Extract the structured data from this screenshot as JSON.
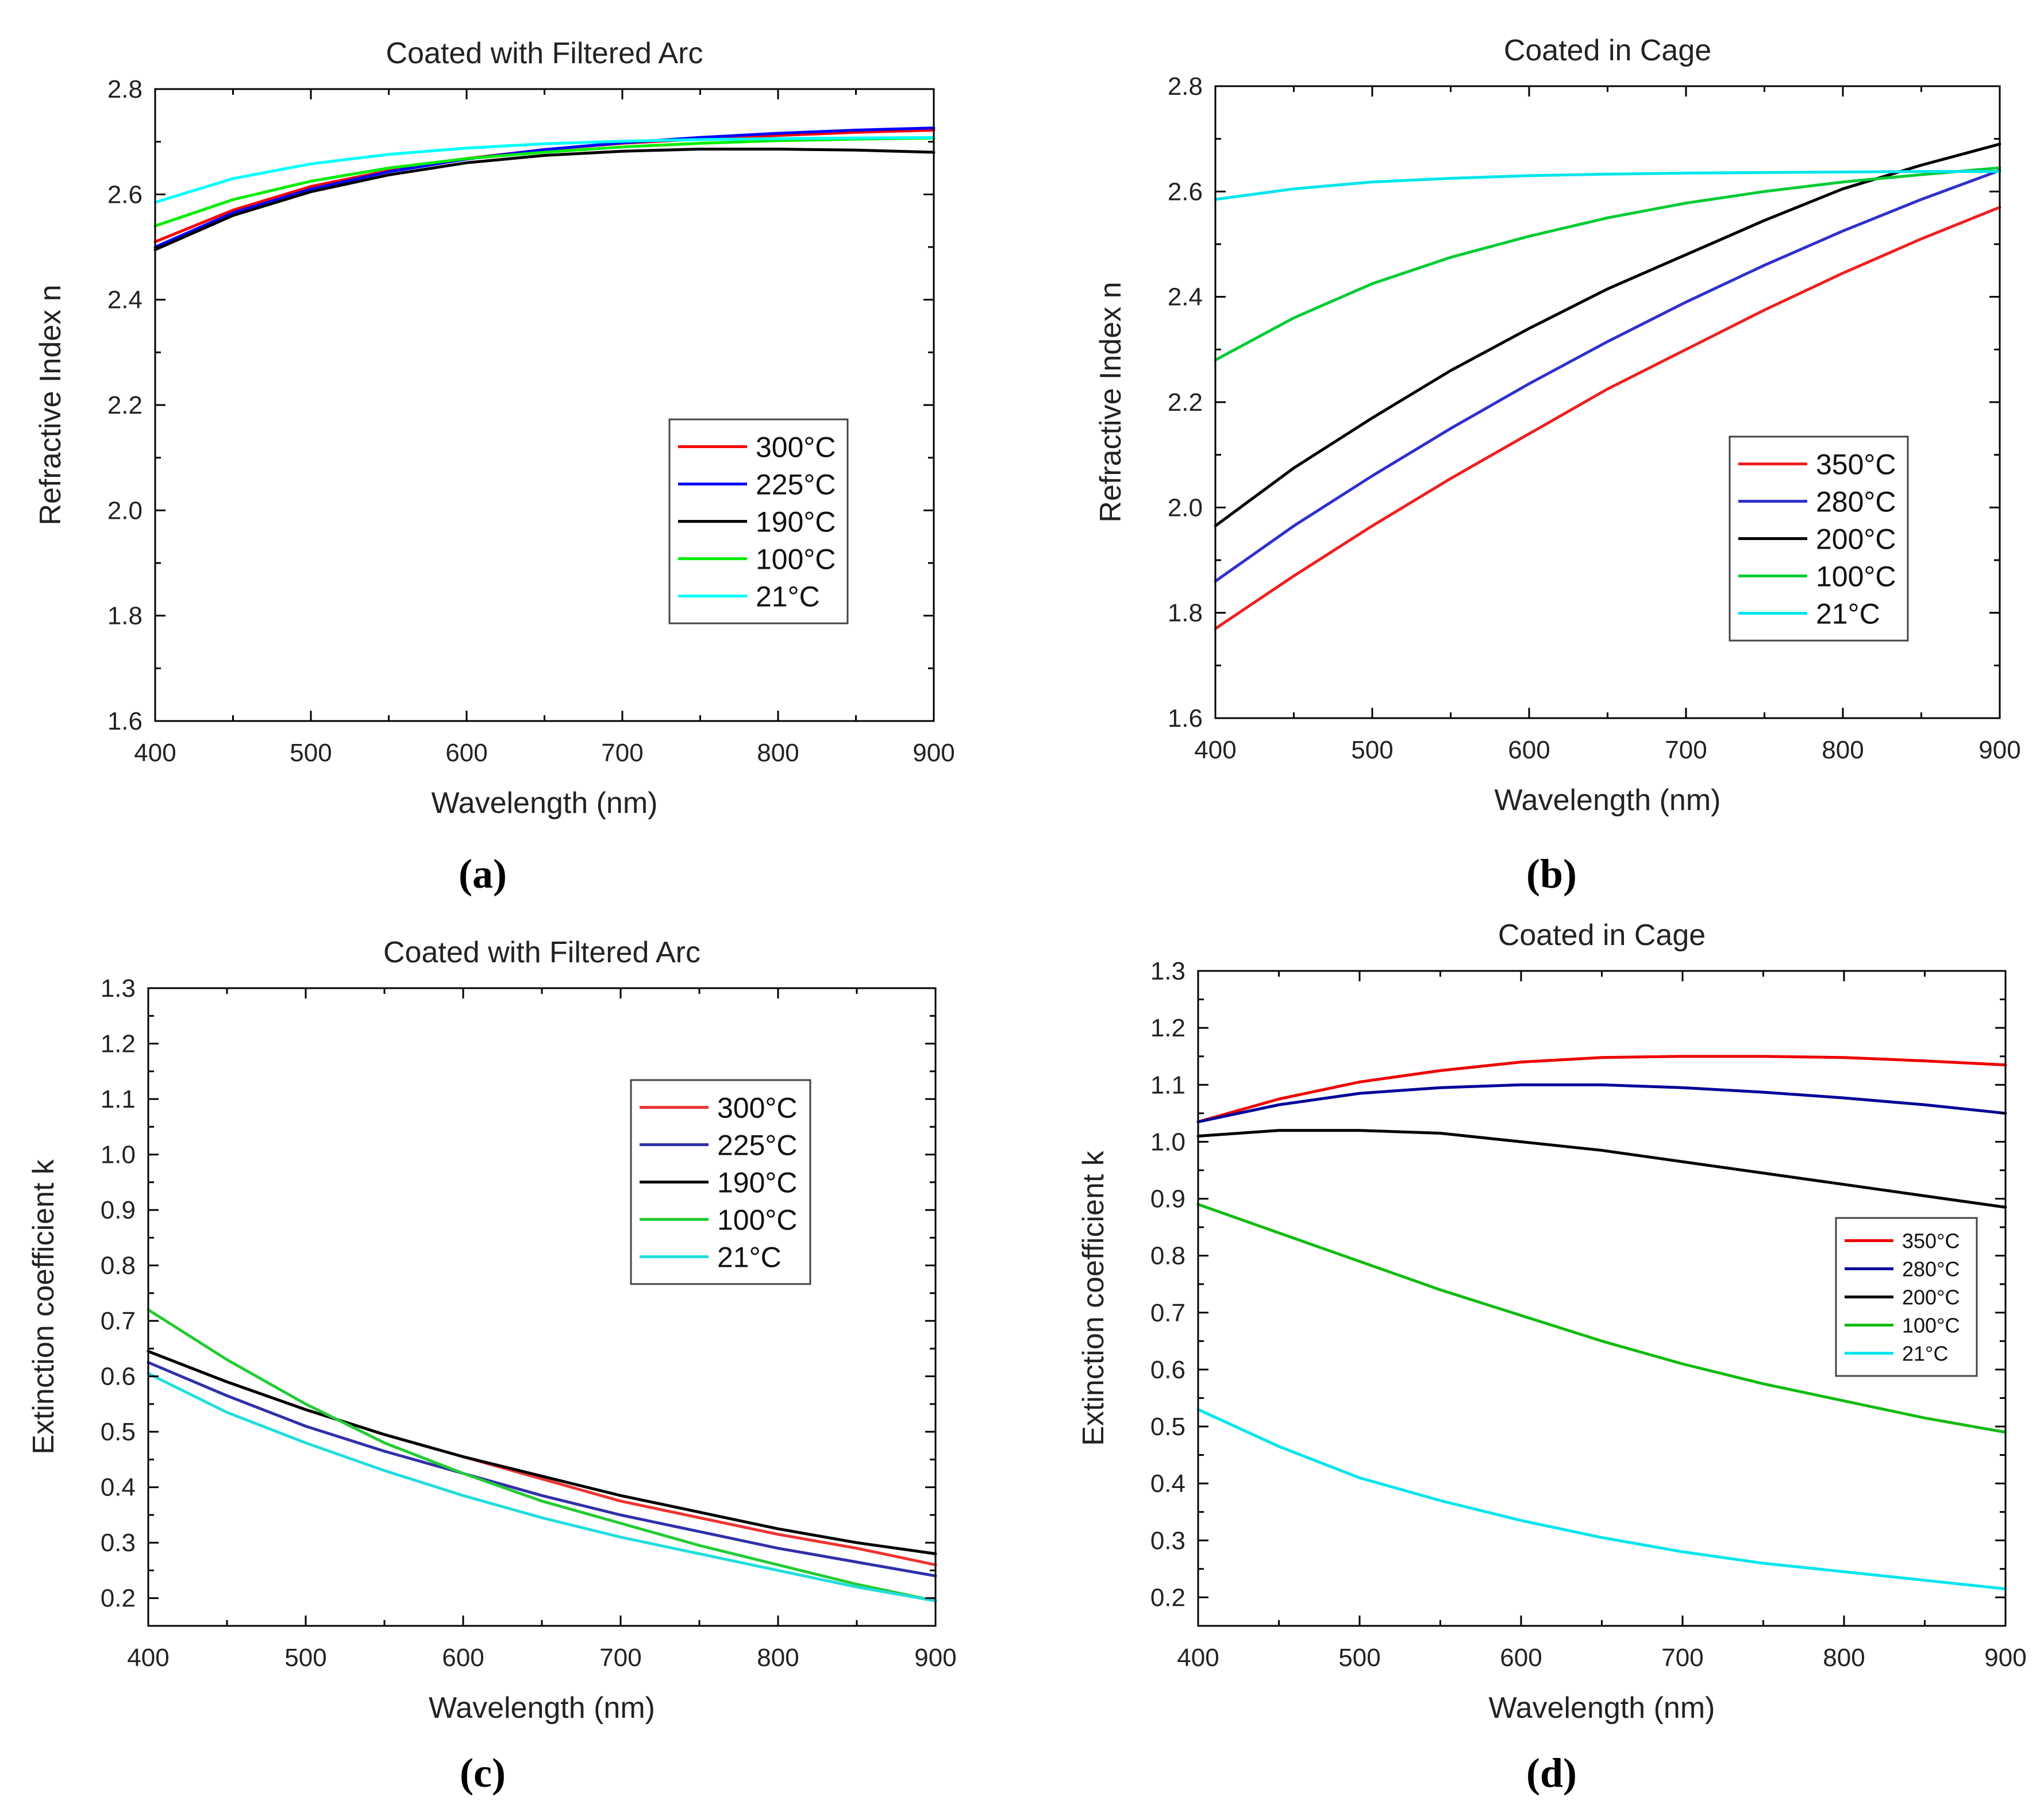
{
  "figure": {
    "panels": [
      "(a)",
      "(b)",
      "(c)",
      "(d)"
    ]
  },
  "chart_data": [
    {
      "id": "a",
      "type": "line",
      "title": "Coated with Filtered Arc",
      "xlabel": "Wavelength (nm)",
      "ylabel": "Refractive Index n",
      "xlim": [
        400,
        900
      ],
      "ylim": [
        1.6,
        2.8
      ],
      "xticks": [
        400,
        500,
        600,
        700,
        800,
        900
      ],
      "yticks": [
        1.6,
        1.8,
        2.0,
        2.2,
        2.4,
        2.6,
        2.8
      ],
      "xtick_labels": [
        "400",
        "500",
        "600",
        "700",
        "800",
        "900"
      ],
      "ytick_labels": [
        "1.6",
        "1.8",
        "2.0",
        "2.2",
        "2.4",
        "2.6",
        "2.8"
      ],
      "legend_position": "lower-right",
      "legend_small": false,
      "x": [
        400,
        450,
        500,
        550,
        600,
        650,
        700,
        750,
        800,
        850,
        900
      ],
      "series": [
        {
          "name": "300°C",
          "color": "#ff0000",
          "values": [
            2.51,
            2.57,
            2.615,
            2.645,
            2.668,
            2.685,
            2.697,
            2.705,
            2.712,
            2.718,
            2.722
          ]
        },
        {
          "name": "225°C",
          "color": "#0000ff",
          "values": [
            2.5,
            2.565,
            2.61,
            2.643,
            2.667,
            2.685,
            2.698,
            2.708,
            2.716,
            2.722,
            2.726
          ]
        },
        {
          "name": "190°C",
          "color": "#000000",
          "values": [
            2.495,
            2.56,
            2.605,
            2.637,
            2.66,
            2.674,
            2.682,
            2.686,
            2.686,
            2.684,
            2.68
          ]
        },
        {
          "name": "100°C",
          "color": "#00ee00",
          "values": [
            2.54,
            2.59,
            2.625,
            2.65,
            2.668,
            2.68,
            2.69,
            2.697,
            2.702,
            2.705,
            2.707
          ]
        },
        {
          "name": "21°C",
          "color": "#00ffff",
          "values": [
            2.585,
            2.63,
            2.658,
            2.676,
            2.688,
            2.696,
            2.701,
            2.704,
            2.706,
            2.707,
            2.708
          ]
        }
      ]
    },
    {
      "id": "b",
      "type": "line",
      "title": "Coated in Cage",
      "xlabel": "Wavelength (nm)",
      "ylabel": "Refractive Index n",
      "xlim": [
        400,
        900
      ],
      "ylim": [
        1.6,
        2.8
      ],
      "xticks": [
        400,
        500,
        600,
        700,
        800,
        900
      ],
      "yticks": [
        1.6,
        1.8,
        2.0,
        2.2,
        2.4,
        2.6,
        2.8
      ],
      "xtick_labels": [
        "400",
        "500",
        "600",
        "700",
        "800",
        "900"
      ],
      "ytick_labels": [
        "1.6",
        "1.8",
        "2.0",
        "2.2",
        "2.4",
        "2.6",
        "2.8"
      ],
      "legend_position": "lower-right",
      "legend_small": false,
      "x": [
        400,
        450,
        500,
        550,
        600,
        650,
        700,
        750,
        800,
        850,
        900
      ],
      "series": [
        {
          "name": "350°C",
          "color": "#ee2020",
          "values": [
            1.77,
            1.87,
            1.965,
            2.055,
            2.14,
            2.225,
            2.3,
            2.375,
            2.445,
            2.51,
            2.57
          ]
        },
        {
          "name": "280°C",
          "color": "#3030cc",
          "values": [
            1.86,
            1.965,
            2.06,
            2.15,
            2.235,
            2.315,
            2.39,
            2.46,
            2.525,
            2.585,
            2.64
          ]
        },
        {
          "name": "200°C",
          "color": "#000000",
          "values": [
            1.965,
            2.075,
            2.17,
            2.26,
            2.34,
            2.415,
            2.48,
            2.545,
            2.605,
            2.65,
            2.69
          ]
        },
        {
          "name": "100°C",
          "color": "#00cc33",
          "values": [
            2.28,
            2.36,
            2.425,
            2.475,
            2.515,
            2.55,
            2.578,
            2.6,
            2.618,
            2.632,
            2.645
          ]
        },
        {
          "name": "21°C",
          "color": "#00e5ee",
          "values": [
            2.585,
            2.605,
            2.618,
            2.625,
            2.63,
            2.633,
            2.635,
            2.636,
            2.637,
            2.638,
            2.638
          ]
        }
      ]
    },
    {
      "id": "c",
      "type": "line",
      "title": "Coated with Filtered Arc",
      "xlabel": "Wavelength (nm)",
      "ylabel": "Extinction coefficient k",
      "xlim": [
        400,
        900
      ],
      "ylim": [
        0.15,
        1.3
      ],
      "xticks": [
        400,
        500,
        600,
        700,
        800,
        900
      ],
      "yticks": [
        0.2,
        0.3,
        0.4,
        0.5,
        0.6,
        0.7,
        0.8,
        0.9,
        1.0,
        1.1,
        1.2,
        1.3
      ],
      "xtick_labels": [
        "400",
        "500",
        "600",
        "700",
        "800",
        "900"
      ],
      "ytick_labels": [
        "0.2",
        "0.3",
        "0.4",
        "0.5",
        "0.6",
        "0.7",
        "0.8",
        "0.9",
        "1.0",
        "1.1",
        "1.2",
        "1.3"
      ],
      "legend_position": "upper-right",
      "legend_small": false,
      "x": [
        400,
        450,
        500,
        550,
        600,
        650,
        700,
        750,
        800,
        850,
        900
      ],
      "series": [
        {
          "name": "300°C",
          "color": "#ee3333",
          "values": [
            0.645,
            0.59,
            0.54,
            0.495,
            0.455,
            0.415,
            0.375,
            0.345,
            0.315,
            0.29,
            0.26
          ]
        },
        {
          "name": "225°C",
          "color": "#3030aa",
          "values": [
            0.625,
            0.565,
            0.51,
            0.465,
            0.425,
            0.385,
            0.35,
            0.32,
            0.29,
            0.265,
            0.24
          ]
        },
        {
          "name": "190°C",
          "color": "#000000",
          "values": [
            0.645,
            0.59,
            0.54,
            0.495,
            0.455,
            0.42,
            0.385,
            0.355,
            0.325,
            0.3,
            0.28
          ]
        },
        {
          "name": "100°C",
          "color": "#22cc33",
          "values": [
            0.72,
            0.63,
            0.55,
            0.48,
            0.425,
            0.375,
            0.335,
            0.295,
            0.26,
            0.225,
            0.195
          ]
        },
        {
          "name": "21°C",
          "color": "#22dddd",
          "values": [
            0.605,
            0.535,
            0.48,
            0.43,
            0.385,
            0.345,
            0.31,
            0.28,
            0.25,
            0.22,
            0.195
          ]
        }
      ]
    },
    {
      "id": "d",
      "type": "line",
      "title": "Coated in Cage",
      "xlabel": "Wavelength (nm)",
      "ylabel": "Extinction coefficient k",
      "xlim": [
        400,
        900
      ],
      "ylim": [
        0.15,
        1.3
      ],
      "xticks": [
        400,
        500,
        600,
        700,
        800,
        900
      ],
      "yticks": [
        0.2,
        0.3,
        0.4,
        0.5,
        0.6,
        0.7,
        0.8,
        0.9,
        1.0,
        1.1,
        1.2,
        1.3
      ],
      "xtick_labels": [
        "400",
        "500",
        "600",
        "700",
        "800",
        "900"
      ],
      "ytick_labels": [
        "0.2",
        "0.3",
        "0.4",
        "0.5",
        "0.6",
        "0.7",
        "0.8",
        "0.9",
        "1.0",
        "1.1",
        "1.2",
        "1.3"
      ],
      "legend_position": "middle-right",
      "legend_small": true,
      "x": [
        400,
        450,
        500,
        550,
        600,
        650,
        700,
        750,
        800,
        850,
        900
      ],
      "series": [
        {
          "name": "350°C",
          "color": "#ee0000",
          "values": [
            1.035,
            1.075,
            1.105,
            1.125,
            1.14,
            1.148,
            1.15,
            1.15,
            1.148,
            1.142,
            1.135
          ]
        },
        {
          "name": "280°C",
          "color": "#000099",
          "values": [
            1.035,
            1.065,
            1.085,
            1.095,
            1.1,
            1.1,
            1.095,
            1.087,
            1.077,
            1.065,
            1.05
          ]
        },
        {
          "name": "200°C",
          "color": "#000000",
          "values": [
            1.01,
            1.02,
            1.02,
            1.015,
            1.0,
            0.985,
            0.965,
            0.945,
            0.925,
            0.905,
            0.885
          ]
        },
        {
          "name": "100°C",
          "color": "#11bb11",
          "values": [
            0.89,
            0.84,
            0.79,
            0.74,
            0.695,
            0.65,
            0.61,
            0.575,
            0.545,
            0.515,
            0.49
          ]
        },
        {
          "name": "21°C",
          "color": "#00e5ee",
          "values": [
            0.53,
            0.465,
            0.41,
            0.37,
            0.335,
            0.305,
            0.28,
            0.26,
            0.245,
            0.23,
            0.215
          ]
        }
      ]
    }
  ]
}
